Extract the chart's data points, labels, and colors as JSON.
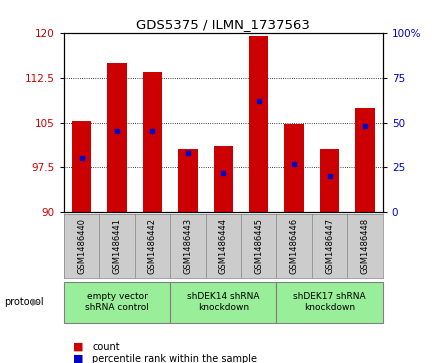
{
  "title": "GDS5375 / ILMN_1737563",
  "samples": [
    "GSM1486440",
    "GSM1486441",
    "GSM1486442",
    "GSM1486443",
    "GSM1486444",
    "GSM1486445",
    "GSM1486446",
    "GSM1486447",
    "GSM1486448"
  ],
  "counts": [
    105.2,
    115.0,
    113.5,
    100.5,
    101.0,
    119.5,
    104.8,
    100.5,
    107.5
  ],
  "percentiles": [
    30,
    45,
    45,
    33,
    22,
    62,
    27,
    20,
    48
  ],
  "ylim_left": [
    90,
    120
  ],
  "ylim_right": [
    0,
    100
  ],
  "yticks_left": [
    90,
    97.5,
    105,
    112.5,
    120
  ],
  "yticks_right": [
    0,
    25,
    50,
    75,
    100
  ],
  "bar_color": "#cc0000",
  "dot_color": "#0000cc",
  "bar_bottom": 90,
  "groups": [
    {
      "label": "empty vector\nshRNA control",
      "start": 0,
      "end": 3,
      "color": "#99ee99"
    },
    {
      "label": "shDEK14 shRNA\nknockdown",
      "start": 3,
      "end": 6,
      "color": "#99ee99"
    },
    {
      "label": "shDEK17 shRNA\nknockdown",
      "start": 6,
      "end": 9,
      "color": "#99ee99"
    }
  ],
  "protocol_label": "protocol",
  "legend_count_label": "count",
  "legend_pct_label": "percentile rank within the sample",
  "tick_color_left": "#cc0000",
  "tick_color_right": "#0000cc",
  "sample_bg": "#cccccc",
  "plot_bg": "#ffffff"
}
